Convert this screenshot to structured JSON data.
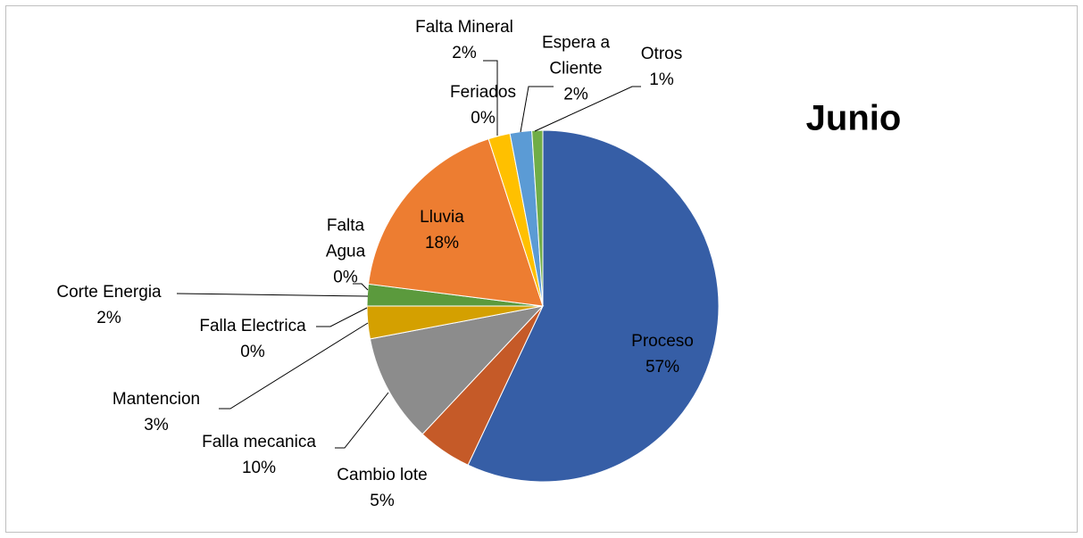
{
  "chart_data": {
    "type": "pie",
    "title": "Junio",
    "categories": [
      "Proceso",
      "Cambio lote",
      "Falla mecanica",
      "Mantencion",
      "Falla Electrica",
      "Corte Energia",
      "Falta Agua",
      "Lluvia",
      "Feriados",
      "Falta Mineral",
      "Espera a Cliente",
      "Otros"
    ],
    "values": [
      57,
      5,
      10,
      3,
      0,
      2,
      0,
      18,
      0,
      2,
      2,
      1
    ],
    "value_labels": [
      "57%",
      "5%",
      "10%",
      "3%",
      "0%",
      "2%",
      "0%",
      "18%",
      "0%",
      "2%",
      "2%",
      "1%"
    ],
    "colors": [
      "#365ea6",
      "#c55a28",
      "#8c8c8c",
      "#d4a000",
      "#4a6fb0",
      "#5b9a3d",
      "#a5a5a5",
      "#ed7d31",
      "#5b9bd5",
      "#ffc000",
      "#5b9bd5",
      "#70ad47"
    ]
  }
}
